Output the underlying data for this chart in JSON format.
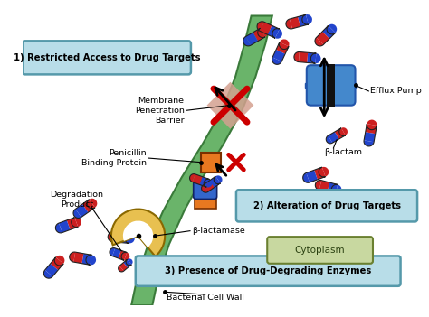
{
  "background_color": "#ffffff",
  "wall_color": "#6ab46a",
  "wall_edge_color": "#3a7a3a",
  "wall_dark": "#4a8a4a",
  "labels": {
    "box1": "1) Restricted Access to Drug Targets",
    "box2": "2) Alteration of Drug Targets",
    "box3": "3) Presence of Drug-Degrading Enzymes",
    "membrane": "Membrane\nPenetration\nBarrier",
    "efflux": "Efflux Pump",
    "beta_lactam": "β-lactam",
    "penicillin": "Penicillin\nBinding Protein",
    "degradation": "Degradation\nProduct",
    "beta_lactamase": "β-lactamase",
    "cytoplasm": "Cytoplasm",
    "cell_wall": "Bacterial Cell Wall"
  },
  "box_bg": "#b8dde8",
  "cytoplasm_bg": "#c8d8a0",
  "orange_protein": "#e87820",
  "blue_protein": "#3366cc",
  "efflux_color": "#4488cc",
  "efflux_dark": "#2255aa",
  "beta_lactamase_color": "#e8c050",
  "red_x": "#cc0000",
  "capsule_red": "#cc2020",
  "capsule_blue": "#2244cc",
  "barrier_bg": "#d4a090",
  "pills": [
    [
      295,
      22,
      20,
      6,
      -25,
      "red",
      "blue"
    ],
    [
      330,
      12,
      20,
      6,
      15,
      "red",
      "blue"
    ],
    [
      362,
      28,
      20,
      6,
      45,
      "red",
      "blue"
    ],
    [
      340,
      55,
      20,
      6,
      -5,
      "red",
      "blue"
    ],
    [
      308,
      48,
      20,
      6,
      65,
      "blue",
      "red"
    ],
    [
      278,
      30,
      20,
      6,
      30,
      "blue",
      "red"
    ],
    [
      415,
      145,
      20,
      6,
      80,
      "blue",
      "red"
    ],
    [
      350,
      195,
      20,
      6,
      20,
      "blue",
      "red"
    ],
    [
      365,
      210,
      20,
      6,
      -15,
      "red",
      "blue"
    ],
    [
      55,
      255,
      20,
      6,
      20,
      "blue",
      "red"
    ],
    [
      72,
      295,
      20,
      6,
      -10,
      "red",
      "blue"
    ],
    [
      38,
      305,
      20,
      6,
      50,
      "blue",
      "red"
    ],
    [
      118,
      270,
      20,
      6,
      -5,
      "red",
      "blue"
    ],
    [
      75,
      235,
      20,
      6,
      35,
      "blue",
      "red"
    ]
  ]
}
